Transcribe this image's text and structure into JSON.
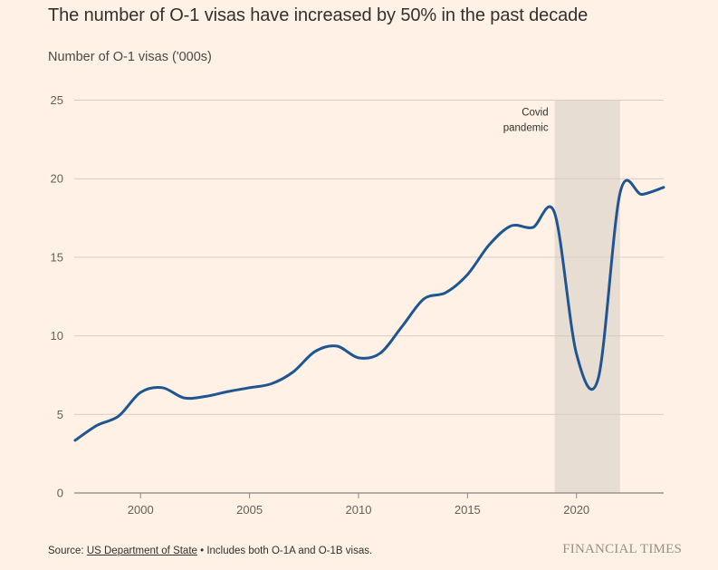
{
  "title": "The number of O-1 visas have increased by 50% in the past decade",
  "subtitle": "Number of O-1 visas ('000s)",
  "footer": {
    "source_prefix": "Source: ",
    "source_link": "US Department of State",
    "note": " • Includes both O-1A and O-1B visas."
  },
  "brand": "FINANCIAL TIMES",
  "colors": {
    "line": "#1f5591",
    "background": "#fff1e5",
    "shade": "#e8ddd2",
    "grid": "#d9ccc1"
  },
  "chart_data": {
    "type": "line",
    "title": "The number of O-1 visas have increased by 50% in the past decade",
    "ylabel": "Number of O-1 visas ('000s)",
    "xlabel": "",
    "xlim": [
      1997,
      2024
    ],
    "ylim": [
      0,
      25
    ],
    "grid": true,
    "x_ticks": [
      2000,
      2005,
      2010,
      2015,
      2020
    ],
    "y_ticks": [
      0,
      5,
      10,
      15,
      20,
      25
    ],
    "series": [
      {
        "name": "O-1 visas",
        "x": [
          1997,
          1998,
          1999,
          2000,
          2001,
          2002,
          2003,
          2004,
          2005,
          2006,
          2007,
          2008,
          2009,
          2010,
          2011,
          2012,
          2013,
          2014,
          2015,
          2016,
          2017,
          2018,
          2019,
          2020,
          2021,
          2022,
          2023,
          2024
        ],
        "values": [
          3.35,
          4.3,
          4.9,
          6.4,
          6.7,
          6.05,
          6.15,
          6.45,
          6.7,
          6.95,
          7.7,
          9.0,
          9.35,
          8.6,
          8.9,
          10.6,
          12.35,
          12.75,
          13.9,
          15.8,
          17.0,
          16.9,
          17.8,
          8.85,
          7.3,
          19.1,
          19.0,
          19.45
        ]
      }
    ],
    "annotations": [
      {
        "type": "shaded-range",
        "x_start": 2019,
        "x_end": 2022,
        "label_lines": [
          "Covid",
          "pandemic"
        ]
      }
    ]
  }
}
